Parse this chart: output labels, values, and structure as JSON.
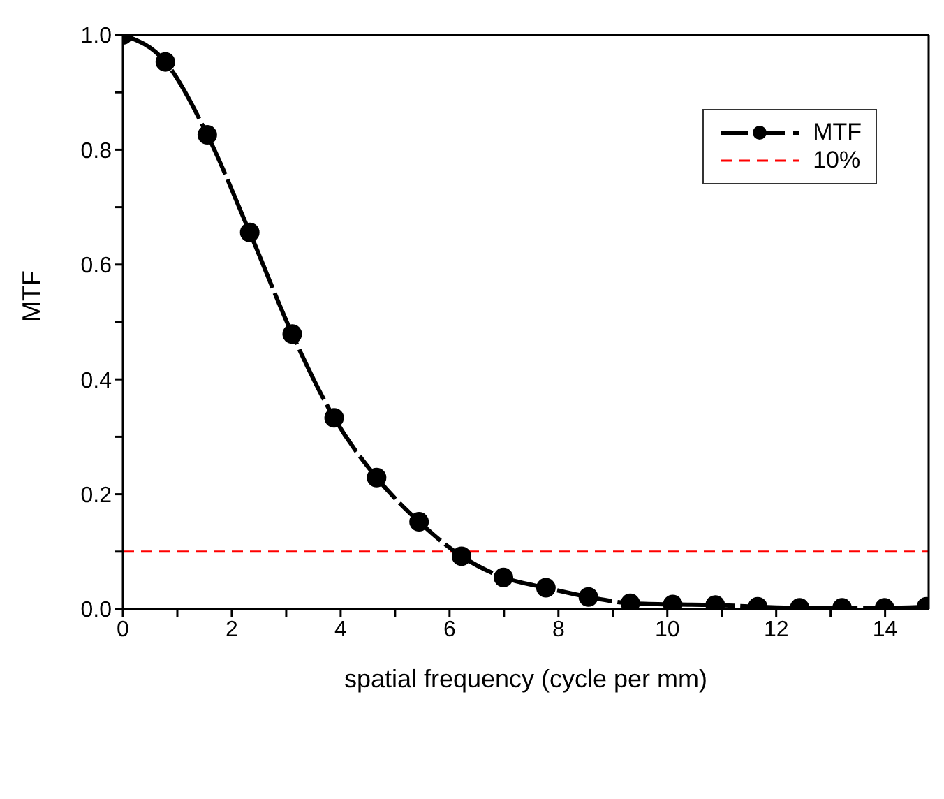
{
  "chart_data": {
    "type": "line",
    "xlabel": "spatial frequency (cycle per mm)",
    "ylabel": "MTF",
    "x": [
      0,
      0.78,
      1.55,
      2.33,
      3.11,
      3.88,
      4.66,
      5.44,
      6.22,
      6.99,
      7.77,
      8.55,
      9.32,
      10.1,
      10.88,
      11.66,
      12.43,
      13.21,
      13.99,
      14.76
    ],
    "series": [
      {
        "name": "MTF",
        "color": "#000000",
        "values": [
          1.0,
          0.953,
          0.826,
          0.656,
          0.479,
          0.333,
          0.229,
          0.152,
          0.092,
          0.055,
          0.037,
          0.021,
          0.01,
          0.008,
          0.007,
          0.004,
          0.002,
          0.002,
          0.002,
          0.004
        ]
      }
    ],
    "ref_lines": [
      {
        "axis": "y",
        "value": 0.1,
        "label": "10%",
        "color": "#ff0000",
        "line_style": "dashed"
      }
    ],
    "xlim": [
      0,
      14.8
    ],
    "xticks": [
      0,
      {
        "value": 1,
        "label": null
      },
      2,
      {
        "value": 3,
        "label": null
      },
      4,
      {
        "value": 5,
        "label": null
      },
      6,
      {
        "value": 7,
        "label": null
      },
      8,
      {
        "value": 9,
        "label": null
      },
      10,
      {
        "value": 11,
        "label": null
      },
      12,
      {
        "value": 13,
        "label": null
      },
      14
    ],
    "ylim": [
      0,
      1
    ],
    "yticks": [
      {
        "value": 0,
        "label": "0.0"
      },
      {
        "value": 0.1,
        "label": null
      },
      0.2,
      {
        "value": 0.3,
        "label": null
      },
      0.4,
      {
        "value": 0.5,
        "label": null
      },
      0.6,
      {
        "value": 0.7,
        "label": null
      },
      0.8,
      {
        "value": 0.9,
        "label": null
      },
      {
        "value": 1,
        "label": "1.0"
      }
    ],
    "grid": false,
    "legend": "top right",
    "marker": "circle",
    "line_style": "dashed"
  }
}
